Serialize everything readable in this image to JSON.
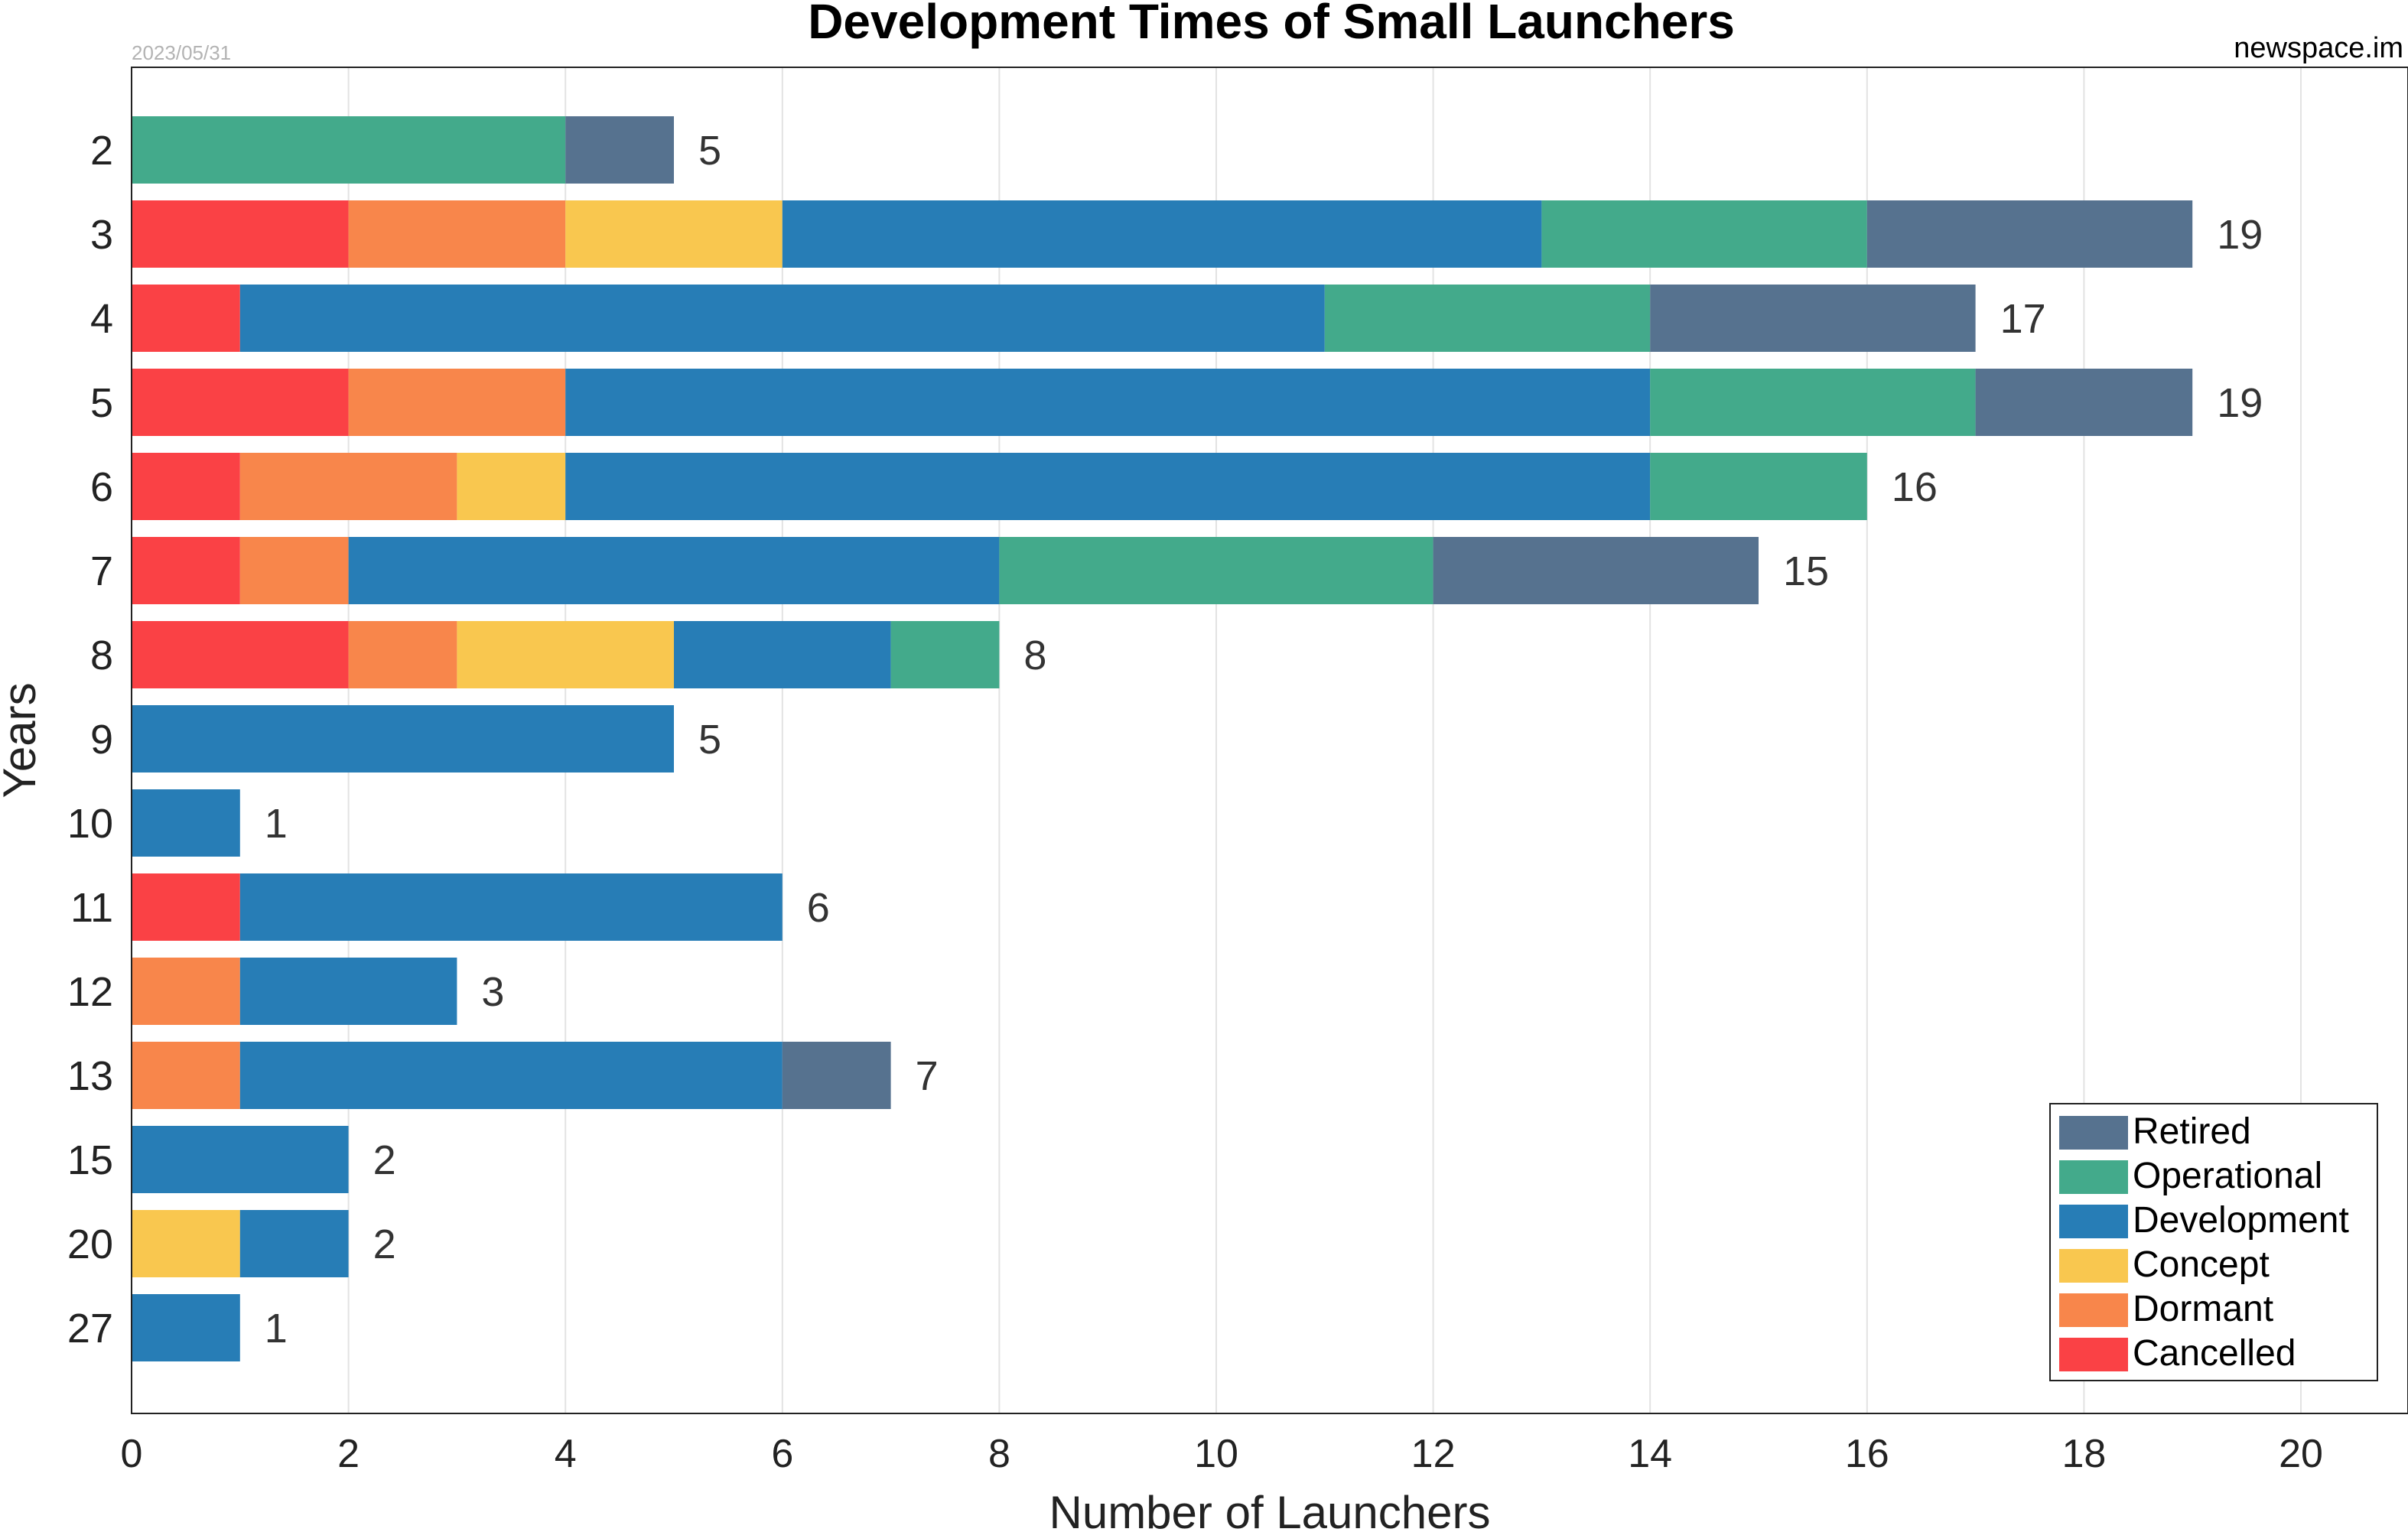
{
  "header": {
    "date": "2023/05/31",
    "source": "newspace.im"
  },
  "colors": {
    "Retired": "#56728f",
    "Operational": "#43aa8b",
    "Development": "#277db6",
    "Concept": "#f9c74f",
    "Dormant": "#f8864b",
    "Cancelled": "#fa4145"
  },
  "chart_data": {
    "type": "bar",
    "orientation": "horizontal",
    "stacked": true,
    "title": "Development Times of Small Launchers",
    "xlabel": "Number of Launchers",
    "ylabel": "Years",
    "xlim": [
      0,
      21
    ],
    "xticks": [
      0,
      2,
      4,
      6,
      8,
      10,
      12,
      14,
      16,
      18,
      20
    ],
    "grid": "vertical",
    "legend_position": "bottom-right",
    "legend_order": [
      "Retired",
      "Operational",
      "Development",
      "Concept",
      "Dormant",
      "Cancelled"
    ],
    "categories": [
      "2",
      "3",
      "4",
      "5",
      "6",
      "7",
      "8",
      "9",
      "10",
      "11",
      "12",
      "13",
      "15",
      "20",
      "27"
    ],
    "series": [
      {
        "name": "Cancelled",
        "values": [
          0,
          2,
          1,
          2,
          1,
          1,
          2,
          0,
          0,
          1,
          0,
          0,
          0,
          0,
          0
        ]
      },
      {
        "name": "Dormant",
        "values": [
          0,
          2,
          0,
          2,
          2,
          1,
          1,
          0,
          0,
          0,
          1,
          1,
          0,
          0,
          0
        ]
      },
      {
        "name": "Concept",
        "values": [
          0,
          2,
          0,
          0,
          1,
          0,
          2,
          0,
          0,
          0,
          0,
          0,
          0,
          1,
          0
        ]
      },
      {
        "name": "Development",
        "values": [
          0,
          7,
          10,
          10,
          10,
          6,
          2,
          5,
          1,
          5,
          2,
          5,
          2,
          1,
          1
        ]
      },
      {
        "name": "Operational",
        "values": [
          4,
          3,
          3,
          3,
          2,
          4,
          1,
          0,
          0,
          0,
          0,
          0,
          0,
          0,
          0
        ]
      },
      {
        "name": "Retired",
        "values": [
          1,
          3,
          3,
          2,
          0,
          3,
          0,
          0,
          0,
          0,
          0,
          1,
          0,
          0,
          0
        ]
      }
    ],
    "totals": [
      "5",
      "19",
      "17",
      "19",
      "16",
      "15",
      "8",
      "5",
      "1",
      "6",
      "3",
      "7",
      "2",
      "2",
      "1"
    ]
  }
}
